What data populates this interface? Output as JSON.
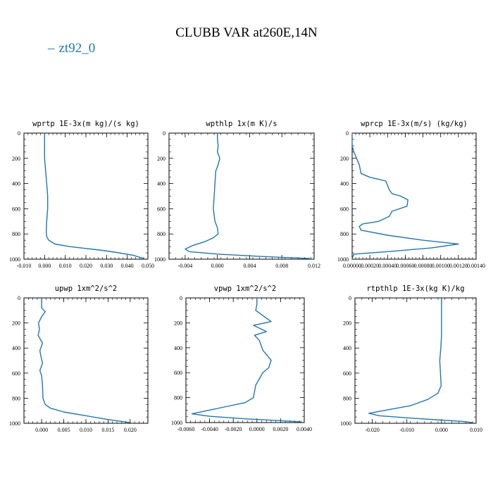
{
  "title": "CLUBB VAR at260E,14N",
  "legend": {
    "label": "zt92_0",
    "color": "#1f77b4"
  },
  "chart_data": [
    {
      "type": "line",
      "title": "wprtp  1E-3x(m kg)/(s kg)",
      "xlim": [
        -0.01,
        0.05
      ],
      "ylim": [
        1000,
        0
      ],
      "xticks": [
        "-0.010",
        "0.000",
        "0.010",
        "0.020",
        "0.030",
        "0.040",
        "0.050"
      ],
      "xtick_values": [
        -0.01,
        0.0,
        0.01,
        0.02,
        0.03,
        0.04,
        0.05
      ],
      "yticks": [
        0,
        200,
        400,
        600,
        800,
        1000
      ],
      "series": [
        {
          "name": "zt92_0",
          "x": [
            0.0,
            0.0,
            0.0,
            0.0005,
            0.001,
            0.0015,
            0.0015,
            0.001,
            0.0008,
            0.001,
            0.002,
            0.005,
            0.012,
            0.02,
            0.028,
            0.036,
            0.043,
            0.048
          ],
          "y": [
            0,
            100,
            200,
            300,
            400,
            500,
            600,
            700,
            780,
            820,
            850,
            880,
            900,
            915,
            930,
            950,
            970,
            995
          ]
        }
      ]
    },
    {
      "type": "line",
      "title": "wpthlp  1x(m K)/s",
      "xlim": [
        -0.006,
        0.012
      ],
      "ylim": [
        1000,
        0
      ],
      "xticks": [
        "-0.004",
        "0.000",
        "0.004",
        "0.008",
        "0.012"
      ],
      "xtick_values": [
        -0.004,
        0.0,
        0.004,
        0.008,
        0.012
      ],
      "yticks": [
        0,
        200,
        400,
        600,
        800,
        1000
      ],
      "series": [
        {
          "name": "zt92_0",
          "x": [
            0.0,
            0.0,
            0.0001,
            0.0,
            0.0003,
            0.0001,
            -0.0002,
            -0.0003,
            -0.0004,
            -0.0005,
            -0.0003,
            0.0,
            0.0001,
            -0.0005,
            -0.0015,
            -0.003,
            -0.004,
            -0.0035,
            0.0,
            0.006,
            0.0115
          ],
          "y": [
            0,
            50,
            100,
            150,
            200,
            250,
            300,
            400,
            500,
            600,
            700,
            750,
            800,
            830,
            860,
            890,
            920,
            940,
            960,
            980,
            995
          ]
        }
      ]
    },
    {
      "type": "line",
      "title": "wprcp  1E-3x(m/s) (kg/kg)",
      "xlim": [
        0.0,
        0.0014
      ],
      "ylim": [
        1000,
        0
      ],
      "xticks": [
        "0.00000",
        "0.00020",
        "0.00040",
        "0.00060",
        "0.00080",
        "0.00100",
        "0.00120",
        "0.00140"
      ],
      "xtick_values": [
        0.0,
        0.0002,
        0.0004,
        0.0006,
        0.0008,
        0.001,
        0.0012,
        0.0014
      ],
      "yticks": [
        0,
        200,
        400,
        600,
        800,
        1000
      ],
      "series": [
        {
          "name": "zt92_0",
          "x": [
            0.0,
            0.0,
            2e-05,
            5e-05,
            8e-05,
            0.0001,
            0.0002,
            0.00038,
            0.00042,
            0.00045,
            0.00055,
            0.00063,
            0.00062,
            0.00045,
            0.00042,
            0.0003,
            0.00012,
            8e-05,
            0.0001,
            0.0004,
            0.0008,
            0.0012,
            0.0009,
            0.0004,
            2e-05,
            0.0
          ],
          "y": [
            0,
            100,
            150,
            200,
            250,
            320,
            350,
            380,
            450,
            480,
            500,
            530,
            580,
            620,
            660,
            700,
            720,
            740,
            770,
            810,
            850,
            880,
            910,
            940,
            960,
            995
          ]
        }
      ]
    },
    {
      "type": "line",
      "title": "upwp  1xm^2/s^2",
      "xlim": [
        -0.004,
        0.024
      ],
      "ylim": [
        1000,
        0
      ],
      "xticks": [
        "0.000",
        "0.005",
        "0.010",
        "0.015",
        "0.020"
      ],
      "xtick_values": [
        0.0,
        0.005,
        0.01,
        0.015,
        0.02
      ],
      "yticks": [
        0,
        200,
        400,
        600,
        800,
        1000
      ],
      "series": [
        {
          "name": "zt92_0",
          "x": [
            0.0,
            0.0,
            0.0008,
            0.0,
            -0.0007,
            -0.0005,
            -0.0008,
            0.0002,
            -0.0004,
            -0.0002,
            0.0002,
            -0.0004,
            0.0,
            0.0002,
            0.0003,
            0.0008,
            0.002,
            0.005,
            0.01,
            0.015,
            0.02
          ],
          "y": [
            0,
            80,
            110,
            150,
            200,
            250,
            300,
            360,
            420,
            460,
            520,
            580,
            620,
            700,
            800,
            850,
            880,
            910,
            940,
            970,
            995
          ]
        }
      ]
    },
    {
      "type": "line",
      "title": "vpwp  1xm^2/s^2",
      "xlim": [
        -0.006,
        0.004
      ],
      "ylim": [
        1000,
        0
      ],
      "xticks": [
        "-0.0060",
        "-0.0040",
        "-0.0020",
        "0.0000",
        "0.0020",
        "0.0040"
      ],
      "xtick_values": [
        -0.006,
        -0.004,
        -0.002,
        0.0,
        0.002,
        0.004
      ],
      "yticks": [
        0,
        200,
        400,
        600,
        800,
        1000
      ],
      "series": [
        {
          "name": "zt92_0",
          "x": [
            0.0,
            0.0,
            -0.0001,
            0.0012,
            -0.0003,
            0.0008,
            -0.0002,
            0.0002,
            0.0005,
            0.0012,
            0.001,
            0.0005,
            0.0002,
            -0.0001,
            -0.0003,
            -0.001,
            -0.0025,
            -0.004,
            -0.0055,
            -0.004,
            -0.001,
            0.002,
            0.0038
          ],
          "y": [
            0,
            50,
            100,
            190,
            220,
            270,
            300,
            340,
            420,
            500,
            560,
            600,
            650,
            700,
            800,
            840,
            870,
            900,
            930,
            950,
            970,
            985,
            995
          ]
        }
      ]
    },
    {
      "type": "line",
      "title": "rtpthlp  1E-3x(kg K)/kg",
      "xlim": [
        -0.025,
        0.01
      ],
      "ylim": [
        1000,
        0
      ],
      "xticks": [
        "-0.020",
        "-0.010",
        "0.000",
        "0.010"
      ],
      "xtick_values": [
        -0.02,
        -0.01,
        0.0,
        0.01
      ],
      "yticks": [
        0,
        200,
        400,
        600,
        800,
        1000
      ],
      "series": [
        {
          "name": "zt92_0",
          "x": [
            0.0,
            0.0,
            0.0,
            -0.0002,
            -0.0005,
            -0.0003,
            -0.0001,
            -0.001,
            -0.004,
            -0.009,
            -0.015,
            -0.021,
            -0.018,
            -0.008,
            0.0,
            0.006,
            0.009
          ],
          "y": [
            0,
            100,
            300,
            400,
            500,
            600,
            700,
            760,
            810,
            860,
            890,
            920,
            940,
            960,
            975,
            985,
            995
          ]
        }
      ]
    }
  ]
}
